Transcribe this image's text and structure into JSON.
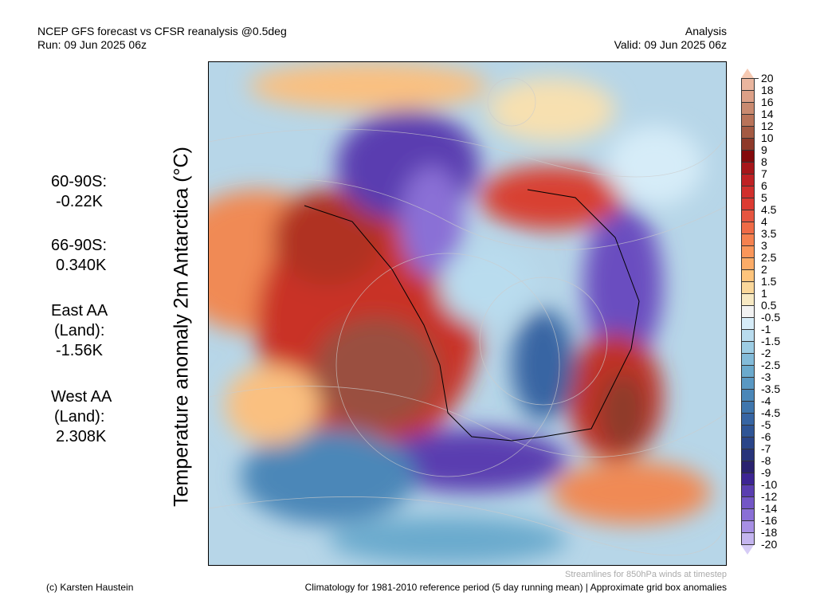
{
  "header": {
    "title": "NCEP GFS forecast vs CFSR reanalysis @0.5deg",
    "run": "Run: 09 Jun 2025 06z",
    "mode": "Analysis",
    "valid": "Valid: 09 Jun 2025 06z"
  },
  "y_axis_label": "Temperature anomaly 2m Antarctica (°C)",
  "stats": [
    {
      "label": "60-90S:",
      "value": "-0.22K"
    },
    {
      "label": "66-90S:",
      "value": "0.340K"
    },
    {
      "label": "East AA",
      "label2": "(Land):",
      "value": "-1.56K"
    },
    {
      "label": "West AA",
      "label2": "(Land):",
      "value": "2.308K"
    }
  ],
  "colorbar": {
    "labels": [
      "20",
      "18",
      "16",
      "14",
      "12",
      "10",
      "9",
      "8",
      "7",
      "6",
      "5",
      "4.5",
      "4",
      "3.5",
      "3",
      "2.5",
      "2",
      "1.5",
      "1",
      "0.5",
      "-0.5",
      "-1",
      "-1.5",
      "-2",
      "-2.5",
      "-3",
      "-3.5",
      "-4",
      "-4.5",
      "-5",
      "-6",
      "-7",
      "-8",
      "-9",
      "-10",
      "-12",
      "-14",
      "-16",
      "-18",
      "-20"
    ],
    "colors": [
      "#e9b59e",
      "#dca087",
      "#c98a70",
      "#b87359",
      "#a45a43",
      "#8e3a2a",
      "#830a0c",
      "#a6161a",
      "#bf2124",
      "#d12f2c",
      "#dc3b32",
      "#e65540",
      "#ef6b46",
      "#f5814f",
      "#fa965a",
      "#fcac68",
      "#fec47c",
      "#fad79a",
      "#f7e9c3",
      "#f2f2f2",
      "#d6ecf8",
      "#b9dcee",
      "#9dcde4",
      "#83bbd9",
      "#6baacd",
      "#5998c3",
      "#4b87b8",
      "#3f76ad",
      "#3765a3",
      "#2f5596",
      "#2a4589",
      "#28347a",
      "#2a226f",
      "#3d2593",
      "#5a3eb0",
      "#7356c6",
      "#8a6fd6",
      "#a78fe4",
      "#c4b5ef"
    ],
    "top_color": "#f6c9b2",
    "bottom_color": "#d6ccf6"
  },
  "footer": {
    "credit": "(c) Karsten Haustein",
    "streamlines": "Streamlines for 850hPa winds at timestep",
    "climatology": "Climatology for 1981-2010 reference period (5 day running mean) | Approximate grid box anomalies"
  }
}
